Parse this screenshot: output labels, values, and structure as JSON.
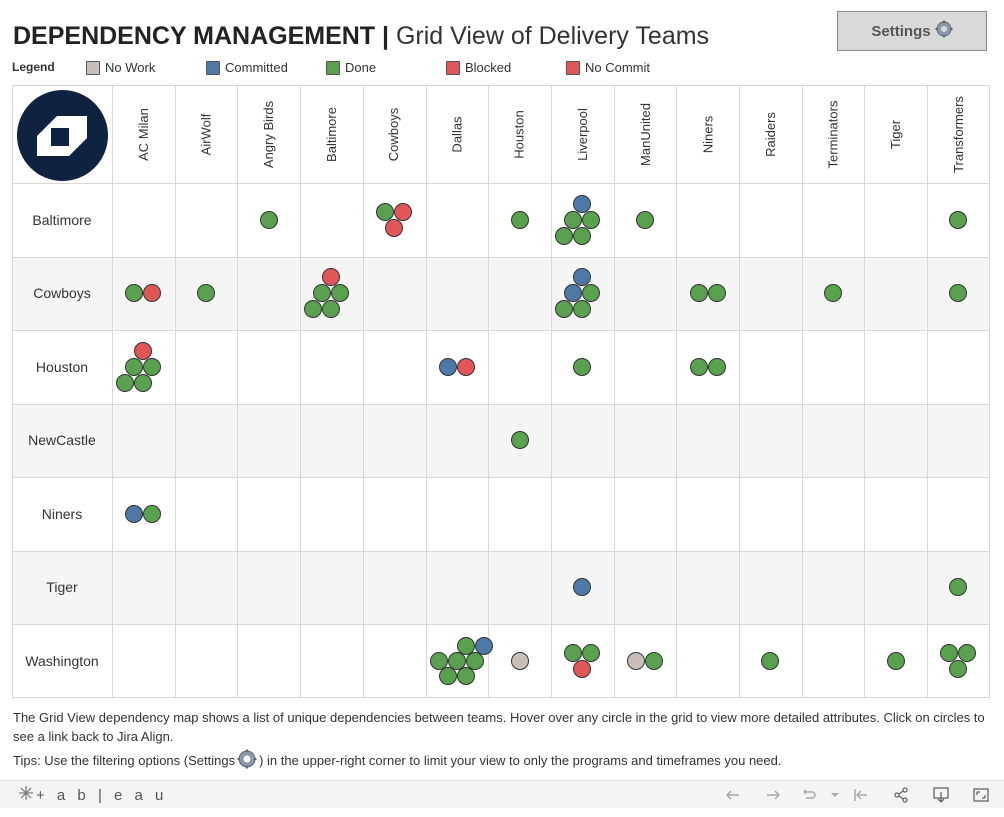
{
  "header": {
    "title_bold": "DEPENDENCY MANAGEMENT |",
    "title_light": "Grid View of Delivery Teams",
    "settings_label": "Settings"
  },
  "legend": {
    "title": "Legend",
    "items": [
      {
        "label": "No Work",
        "color": "#c8bfb8"
      },
      {
        "label": "Committed",
        "color": "#4e79a7"
      },
      {
        "label": "Done",
        "color": "#59a14f"
      },
      {
        "label": "Blocked",
        "color": "#e15759"
      },
      {
        "label": "No Commit",
        "color": "#e15759"
      }
    ]
  },
  "colors": {
    "none": "#c8bfb8",
    "committed": "#4e79a7",
    "done": "#59a14f",
    "blocked": "#e15759",
    "logo_bg": "#0f2240"
  },
  "grid": {
    "columns": [
      "AC Milan",
      "AirWolf",
      "Angry Birds",
      "Baltimore",
      "Cowboys",
      "Dallas",
      "Houston",
      "Liverpool",
      "ManUnited",
      "Niners",
      "Raiders",
      "Terminators",
      "Tiger",
      "Transformers"
    ],
    "rows": [
      {
        "label": "Baltimore",
        "cells": [
          [],
          [],
          [
            "done"
          ],
          [],
          [
            "done",
            "blocked",
            "blocked"
          ],
          [],
          [
            "done"
          ],
          [
            "committed",
            "done",
            "done",
            "done",
            "done"
          ],
          [
            "done"
          ],
          [],
          [],
          [],
          [],
          [
            "done"
          ]
        ]
      },
      {
        "label": "Cowboys",
        "cells": [
          [
            "done",
            "blocked"
          ],
          [
            "done"
          ],
          [],
          [
            "blocked",
            "done",
            "done",
            "done",
            "done"
          ],
          [],
          [],
          [],
          [
            "committed",
            "committed",
            "done",
            "done",
            "done"
          ],
          [],
          [
            "done",
            "done"
          ],
          [],
          [
            "done"
          ],
          [],
          [
            "done"
          ]
        ]
      },
      {
        "label": "Houston",
        "cells": [
          [
            "blocked",
            "done",
            "done",
            "done",
            "done"
          ],
          [],
          [],
          [],
          [],
          [
            "committed",
            "blocked"
          ],
          [],
          [
            "done"
          ],
          [],
          [
            "done",
            "done"
          ],
          [],
          [],
          [],
          []
        ]
      },
      {
        "label": "NewCastle",
        "cells": [
          [],
          [],
          [],
          [],
          [],
          [],
          [
            "done"
          ],
          [],
          [],
          [],
          [],
          [],
          [],
          []
        ]
      },
      {
        "label": "Niners",
        "cells": [
          [
            "committed",
            "done"
          ],
          [],
          [],
          [],
          [],
          [],
          [],
          [],
          [],
          [],
          [],
          [],
          [],
          []
        ]
      },
      {
        "label": "Tiger",
        "cells": [
          [],
          [],
          [],
          [],
          [],
          [],
          [],
          [
            "committed"
          ],
          [],
          [],
          [],
          [],
          [],
          [
            "done"
          ]
        ]
      },
      {
        "label": "Washington",
        "cells": [
          [],
          [],
          [],
          [],
          [],
          [
            "done",
            "committed",
            "done",
            "done",
            "done",
            "done",
            "done"
          ],
          [
            "none"
          ],
          [
            "done",
            "done",
            "blocked"
          ],
          [
            "none",
            "done"
          ],
          [],
          [
            "done"
          ],
          [],
          [
            "done"
          ],
          [
            "done",
            "done",
            "done"
          ]
        ]
      }
    ]
  },
  "footer": {
    "description": "The Grid View dependency map shows a list of unique dependencies between teams. Hover over any circle in the grid to view more detailed attributes. Click on circles to see a link back to Jira Align.",
    "tips_prefix": "Tips: Use the filtering options (Settings",
    "tips_suffix": ") in the upper-right corner to limit your view to only the programs and timeframes you need."
  },
  "toolbar": {
    "brand": "+ a b | e a u"
  }
}
